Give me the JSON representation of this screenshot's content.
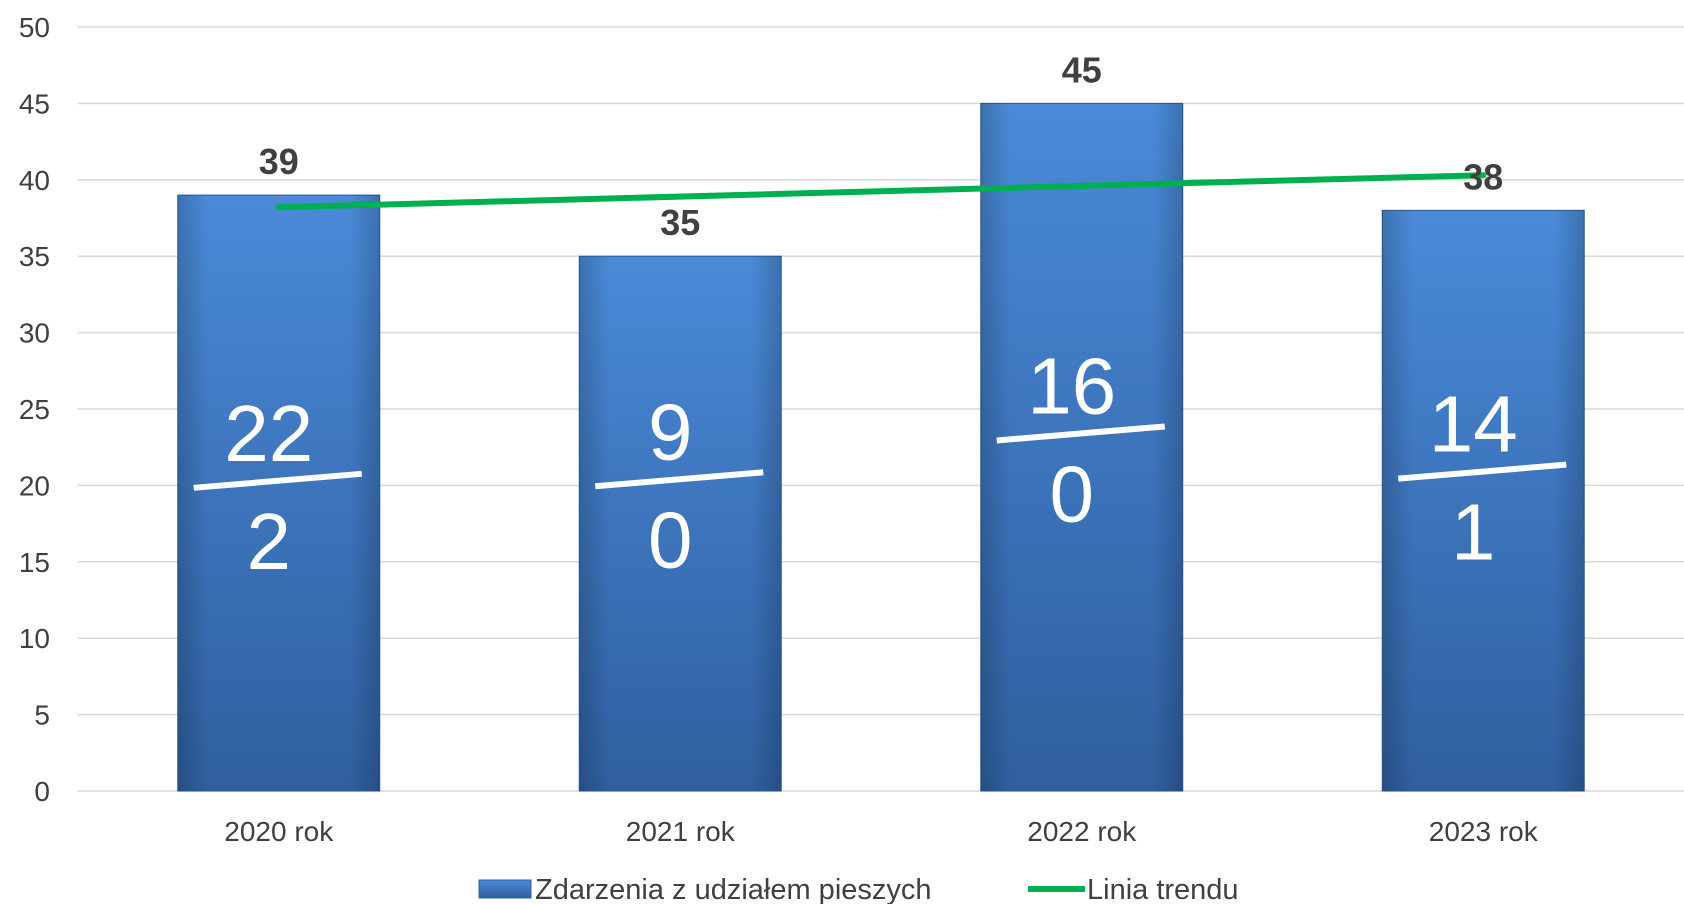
{
  "chart_data": {
    "type": "bar",
    "categories": [
      "2020 rok",
      "2021 rok",
      "2022 rok",
      "2023 rok"
    ],
    "series": [
      {
        "name": "Zdarzenia z udziałem pieszych",
        "values": [
          39,
          35,
          45,
          38
        ],
        "color": "#3f78c4"
      }
    ],
    "inner_labels": [
      {
        "top": "22",
        "bottom": "2"
      },
      {
        "top": "9",
        "bottom": "0"
      },
      {
        "top": "16",
        "bottom": "0"
      },
      {
        "top": "14",
        "bottom": "1"
      }
    ],
    "trendline": {
      "name": "Linia trendu",
      "type": "linear",
      "color": "#00b050"
    },
    "ylim": [
      0,
      50
    ],
    "yticks": [
      0,
      5,
      10,
      15,
      20,
      25,
      30,
      35,
      40,
      45,
      50
    ],
    "grid": true,
    "legend": "bottom",
    "title": "",
    "xlabel": "",
    "ylabel": ""
  }
}
